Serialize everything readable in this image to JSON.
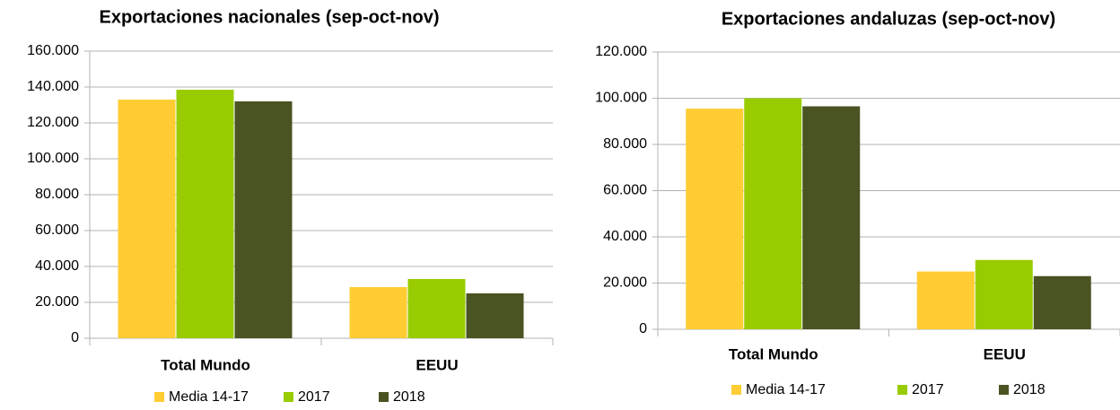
{
  "chart_data": [
    {
      "type": "bar",
      "title": "Exportaciones nacionales (sep-oct-nov)",
      "categories": [
        "Total Mundo",
        "EEUU"
      ],
      "series": [
        {
          "name": "Media 14-17",
          "color": "#ffcc33",
          "values": [
            133000,
            28500
          ]
        },
        {
          "name": "2017",
          "color": "#99cc00",
          "values": [
            138500,
            33000
          ]
        },
        {
          "name": "2018",
          "color": "#4a5322",
          "values": [
            132000,
            25000
          ]
        }
      ],
      "ylim": [
        0,
        160000
      ],
      "yticks": [
        0,
        {
          "value": 20000,
          "label": "20.000"
        },
        {
          "value": 40000,
          "label": "40.000"
        },
        {
          "value": 60000,
          "label": "60.000"
        },
        {
          "value": 80000,
          "label": "80.000"
        },
        {
          "value": 100000,
          "label": "100.000"
        },
        {
          "value": 120000,
          "label": "120.000"
        },
        {
          "value": 140000,
          "label": "140.000"
        },
        {
          "value": 160000,
          "label": "160.000"
        }
      ],
      "grid": true,
      "legend": "bottom"
    },
    {
      "type": "bar",
      "title": "Exportaciones andaluzas (sep-oct-nov)",
      "categories": [
        "Total Mundo",
        "EEUU"
      ],
      "series": [
        {
          "name": "Media 14-17",
          "color": "#ffcc33",
          "values": [
            95500,
            25000
          ]
        },
        {
          "name": "2017",
          "color": "#99cc00",
          "values": [
            100000,
            30000
          ]
        },
        {
          "name": "2018",
          "color": "#4a5322",
          "values": [
            96500,
            23000
          ]
        }
      ],
      "ylim": [
        0,
        120000
      ],
      "yticks": [
        0,
        {
          "value": 20000,
          "label": "20.000"
        },
        {
          "value": 40000,
          "label": "40.000"
        },
        {
          "value": 60000,
          "label": "60.000"
        },
        {
          "value": 80000,
          "label": "80.000"
        },
        {
          "value": 100000,
          "label": "100.000"
        },
        {
          "value": 120000,
          "label": "120.000"
        }
      ],
      "grid": true,
      "legend": "bottom"
    }
  ]
}
